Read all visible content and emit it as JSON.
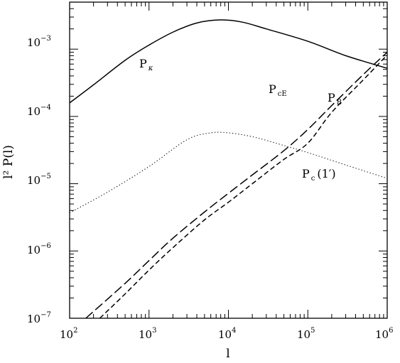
{
  "chart_data": {
    "type": "line",
    "xlabel": "l",
    "ylabel": "l² P(l)",
    "xscale": "log",
    "yscale": "log",
    "xlim": [
      100,
      1000000
    ],
    "ylim": [
      1e-07,
      0.005
    ],
    "grid": false,
    "legend": "none",
    "x_ticks": [
      {
        "base": "10",
        "exp": "2"
      },
      {
        "base": "10",
        "exp": "3"
      },
      {
        "base": "10",
        "exp": "4"
      },
      {
        "base": "10",
        "exp": "5"
      },
      {
        "base": "10",
        "exp": "6"
      }
    ],
    "y_ticks": [
      {
        "base": "10",
        "exp": "−7"
      },
      {
        "base": "10",
        "exp": "−6"
      },
      {
        "base": "10",
        "exp": "−5"
      },
      {
        "base": "10",
        "exp": "−4"
      },
      {
        "base": "10",
        "exp": "−3"
      }
    ],
    "series": [
      {
        "label_main": "P",
        "label_sub": "κ",
        "label_suffix": "",
        "style": "solid",
        "x": [
          100,
          200,
          500,
          1000,
          2000,
          4000,
          8000,
          15000,
          30000,
          100000,
          300000,
          1000000
        ],
        "y": [
          0.000159,
          0.000295,
          0.000683,
          0.00115,
          0.00179,
          0.00245,
          0.00272,
          0.00252,
          0.002,
          0.00131,
          0.0008,
          0.00052
        ]
      },
      {
        "label_main": "P",
        "label_sub": "cE",
        "label_suffix": "",
        "style": "dashed",
        "x": [
          240,
          500,
          1000,
          2000,
          5000,
          10000,
          20000,
          50000,
          100000,
          200000,
          500000,
          1000000
        ],
        "y": [
          1e-07,
          2.3e-07,
          5.2e-07,
          1.12e-06,
          2.9e-06,
          5.3e-06,
          1e-05,
          2.3e-05,
          4e-05,
          0.000115,
          0.00035,
          0.00082
        ]
      },
      {
        "label_main": "P",
        "label_sub": "B",
        "label_suffix": "",
        "style": "longdash",
        "x": [
          160,
          500,
          1000,
          2000,
          5000,
          10000,
          20000,
          50000,
          100000,
          200000,
          500000,
          1000000
        ],
        "y": [
          1e-07,
          3.3e-07,
          7.2e-07,
          1.55e-06,
          3.8e-06,
          7.2e-06,
          1.35e-05,
          3.1e-05,
          6.4e-05,
          0.000145,
          0.00042,
          0.0009
        ]
      },
      {
        "label_main": "P",
        "label_sub": "c",
        "label_suffix": "(1′)",
        "style": "dotted",
        "x": [
          100,
          300,
          1000,
          3000,
          6000,
          10000,
          20000,
          50000,
          100000,
          300000,
          1000000
        ],
        "y": [
          3.7e-06,
          7.5e-06,
          1.8e-05,
          4.5e-05,
          5.7e-05,
          5.7e-05,
          5e-05,
          3.7e-05,
          2.9e-05,
          1.9e-05,
          1.2e-05
        ]
      }
    ]
  }
}
